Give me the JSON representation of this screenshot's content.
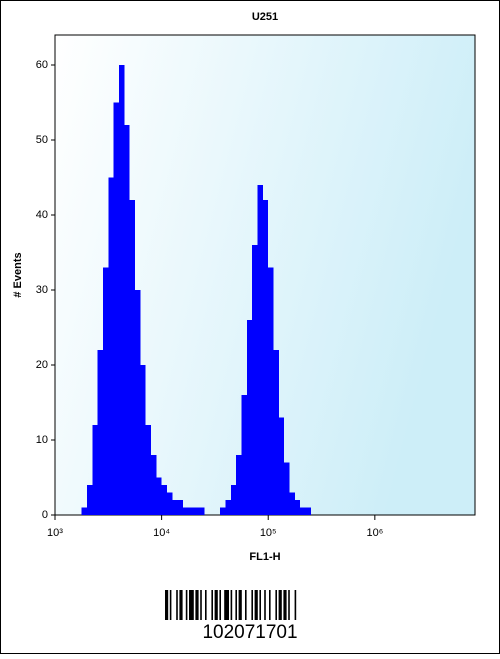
{
  "chart_data": {
    "type": "histogram",
    "title": "U251",
    "xlabel": "FL1-H",
    "ylabel": "# Events",
    "xscale": "log",
    "color": "#0000ff",
    "bins": [
      1778,
      1995,
      2239,
      2512,
      2818,
      3162,
      3548,
      3981,
      4467,
      5012,
      5623,
      6310,
      7079,
      7943,
      8913,
      10000,
      11220,
      12589,
      14125,
      15849,
      17783,
      19953,
      22387,
      25119,
      28184,
      31623,
      35481,
      39811,
      44668,
      50119,
      56234,
      63096,
      70795,
      79433,
      89125,
      100000,
      112202,
      125893,
      141254,
      158489,
      177828,
      199526,
      223872,
      251189,
      281838,
      316228
    ],
    "counts": [
      1,
      4,
      12,
      22,
      33,
      45,
      55,
      60,
      52,
      42,
      30,
      20,
      12,
      8,
      5,
      4,
      3,
      2,
      2,
      1,
      1,
      1,
      1,
      0,
      0,
      0,
      1,
      2,
      4,
      8,
      16,
      26,
      36,
      44,
      42,
      33,
      22,
      13,
      7,
      3,
      2,
      1,
      1,
      0,
      0
    ],
    "xlim": [
      1000,
      8700000
    ],
    "ylim": [
      0,
      64
    ],
    "xticks": [
      {
        "value": 1000,
        "label": "10³"
      },
      {
        "value": 10000,
        "label": "10⁴"
      },
      {
        "value": 100000,
        "label": "10⁵"
      },
      {
        "value": 1000000,
        "label": "10⁶"
      }
    ],
    "yticks": [
      0,
      10,
      20,
      30,
      40,
      50,
      60
    ]
  },
  "barcode": {
    "number": "102071701"
  }
}
